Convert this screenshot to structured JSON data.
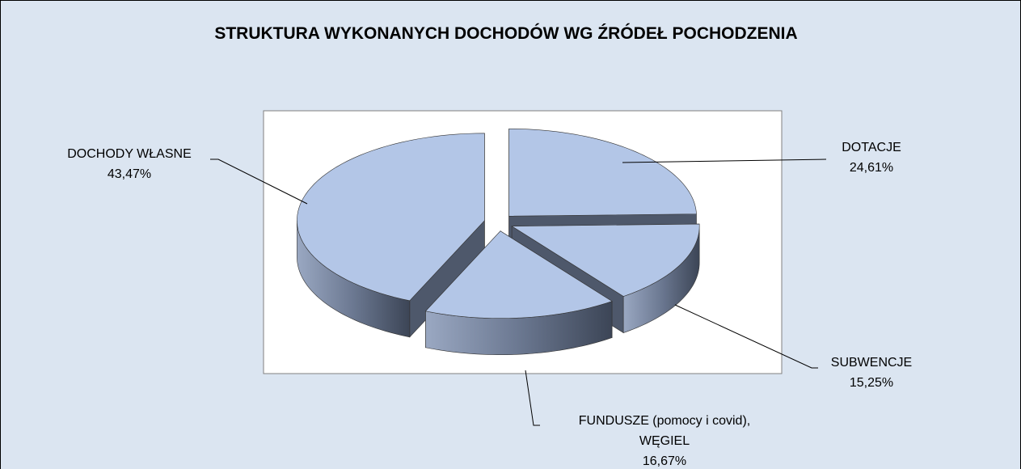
{
  "chart_data": {
    "type": "pie3d",
    "title": "STRUKTURA WYKONANYCH DOCHODÓW WG ŹRÓDEŁ POCHODZENIA",
    "categories": [
      "DOTACJE",
      "SUBWENCJE",
      "FUNDUSZE (pomocy i covid),\nWĘGIEL",
      "DOCHODY WŁASNE"
    ],
    "values": [
      24.61,
      15.25,
      16.67,
      43.47
    ],
    "value_labels": [
      "24,61%",
      "15,25%",
      "16,67%",
      "43,47%"
    ],
    "color": "#b3c6e7"
  }
}
